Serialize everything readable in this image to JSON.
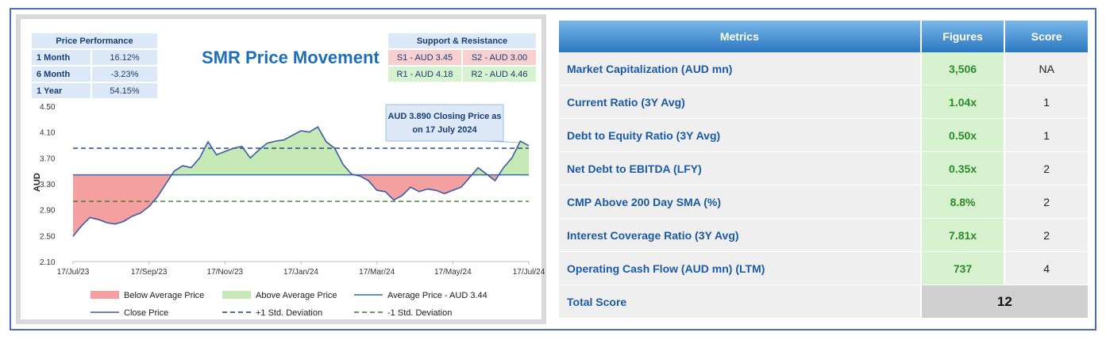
{
  "chart_data": {
    "type": "line",
    "title": "SMR Price Movement",
    "ylabel": "AUD",
    "ylim": [
      2.1,
      4.5
    ],
    "yticks": [
      "4.50",
      "4.10",
      "3.70",
      "3.30",
      "2.90",
      "2.50",
      "2.10"
    ],
    "xticks": [
      "17/Jul/23",
      "17/Sep/23",
      "17/Nov/23",
      "17/Jan/24",
      "17/Mar/24",
      "17/May/24",
      "17/Jul/24"
    ],
    "average": 3.44,
    "plus_std": 3.85,
    "minus_std": 3.03,
    "close_series": [
      2.49,
      2.65,
      2.78,
      2.75,
      2.7,
      2.68,
      2.72,
      2.8,
      2.85,
      2.95,
      3.1,
      3.3,
      3.5,
      3.58,
      3.55,
      3.7,
      3.95,
      3.75,
      3.8,
      3.85,
      3.88,
      3.7,
      3.82,
      3.93,
      3.96,
      3.98,
      4.05,
      4.12,
      4.1,
      4.18,
      3.95,
      3.85,
      3.6,
      3.45,
      3.42,
      3.35,
      3.2,
      3.18,
      3.05,
      3.12,
      3.25,
      3.18,
      3.22,
      3.2,
      3.15,
      3.2,
      3.25,
      3.4,
      3.55,
      3.45,
      3.35,
      3.55,
      3.7,
      3.96,
      3.89
    ],
    "legend": [
      "Below Average Price",
      "Above Average Price",
      "Average Price - AUD 3.44",
      "Close Price",
      "+1 Std. Deviation",
      "-1 Std. Deviation"
    ],
    "annotation": "AUD 3.890 Closing Price as on 17 July 2024",
    "colors": {
      "below": "#f4a0a0",
      "above": "#c6e9b5",
      "average": "#2e6db4",
      "close": "#3b5ba5",
      "plus_std": "#1f3f7a",
      "minus_std": "#3f7a2a"
    }
  },
  "performance": {
    "header": "Price Performance",
    "rows": [
      {
        "label": "1 Month",
        "value": "16.12%"
      },
      {
        "label": "6 Month",
        "value": "-3.23%"
      },
      {
        "label": "1 Year",
        "value": "54.15%"
      }
    ]
  },
  "support_resistance": {
    "header": "Support & Resistance",
    "s1": "S1 - AUD 3.45",
    "s2": "S2 - AUD 3.00",
    "r1": "R1 - AUD 4.18",
    "r2": "R2 - AUD 4.46"
  },
  "metrics": {
    "headers": {
      "metric": "Metrics",
      "figure": "Figures",
      "score": "Score"
    },
    "rows": [
      {
        "label": "Market Capitalization (AUD mn)",
        "figure": "3,506",
        "score": "NA"
      },
      {
        "label": "Current Ratio (3Y Avg)",
        "figure": "1.04x",
        "score": "1"
      },
      {
        "label": "Debt to Equity Ratio (3Y Avg)",
        "figure": "0.50x",
        "score": "1"
      },
      {
        "label": "Net Debt to EBITDA (LFY)",
        "figure": "0.35x",
        "score": "2"
      },
      {
        "label": "CMP Above 200 Day SMA (%)",
        "figure": "8.8%",
        "score": "2"
      },
      {
        "label": "Interest Coverage Ratio (3Y Avg)",
        "figure": "7.81x",
        "score": "2"
      },
      {
        "label": "Operating Cash Flow (AUD mn) (LTM)",
        "figure": "737",
        "score": "4"
      }
    ],
    "total_label": "Total Score",
    "total_value": "12"
  }
}
